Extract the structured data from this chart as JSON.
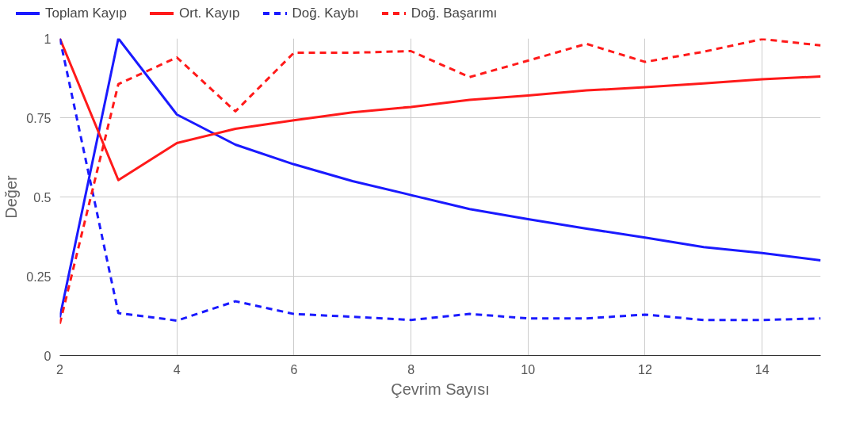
{
  "chart_data": {
    "type": "line",
    "xlabel": "Çevrim Sayısı",
    "ylabel": "Değer",
    "x": [
      2,
      3,
      4,
      5,
      6,
      7,
      8,
      9,
      10,
      11,
      12,
      13,
      14,
      15
    ],
    "xlim": [
      2,
      15
    ],
    "xticks": [
      2,
      4,
      6,
      8,
      10,
      12,
      14
    ],
    "ylim": [
      0,
      1
    ],
    "yticks": [
      0,
      0.25,
      0.5,
      0.75,
      1
    ],
    "grid": true,
    "legend": "top",
    "marker": "none",
    "series": [
      {
        "name": "Toplam Kayıp",
        "color": "#1a1aff",
        "line_style": "solid",
        "values": [
          0.12,
          1.0,
          0.76,
          0.665,
          0.603,
          0.55,
          0.506,
          0.462,
          0.43,
          0.4,
          0.372,
          0.342,
          0.323,
          0.3
        ]
      },
      {
        "name": "Ort. Kayıp",
        "color": "#ff1a1a",
        "line_style": "solid",
        "values": [
          1.0,
          0.553,
          0.67,
          0.715,
          0.742,
          0.767,
          0.784,
          0.806,
          0.82,
          0.836,
          0.846,
          0.858,
          0.871,
          0.88
        ]
      },
      {
        "name": "Doğ. Kaybı",
        "color": "#1a1aff",
        "line_style": "dashed",
        "values": [
          1.0,
          0.134,
          0.11,
          0.171,
          0.131,
          0.122,
          0.112,
          0.131,
          0.117,
          0.117,
          0.129,
          0.112,
          0.112,
          0.117
        ]
      },
      {
        "name": "Doğ. Başarımı",
        "color": "#ff1a1a",
        "line_style": "dashed",
        "values": [
          0.1,
          0.856,
          0.94,
          0.77,
          0.955,
          0.955,
          0.96,
          0.878,
          0.93,
          0.983,
          0.926,
          0.958,
          0.998,
          0.978
        ]
      }
    ]
  }
}
